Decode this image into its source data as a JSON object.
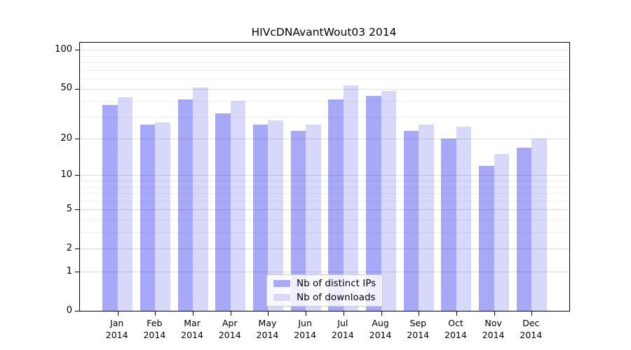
{
  "title": "HIVcDNAvantWout03 2014",
  "chart_data": {
    "type": "bar",
    "title": "HIVcDNAvantWout03 2014",
    "scale": "log1p",
    "categories": [
      "Jan",
      "Feb",
      "Mar",
      "Apr",
      "May",
      "Jun",
      "Jul",
      "Aug",
      "Sep",
      "Oct",
      "Nov",
      "Dec"
    ],
    "year": "2014",
    "series": [
      {
        "name": "Nb of distinct IPs",
        "color": "#a8a8f8",
        "values": [
          37,
          26,
          41,
          32,
          26,
          23,
          41,
          44,
          23,
          20,
          12,
          17
        ]
      },
      {
        "name": "Nb of downloads",
        "color": "#d8d8fa",
        "values": [
          43,
          27,
          51,
          40,
          28,
          26,
          53,
          48,
          26,
          25,
          15,
          20
        ]
      }
    ],
    "yticks": [
      0,
      1,
      2,
      5,
      10,
      20,
      50,
      100
    ],
    "minor_gridlines": [
      3,
      4,
      6,
      7,
      8,
      9,
      30,
      40,
      60,
      70,
      80,
      90
    ],
    "ylim": [
      0,
      114
    ],
    "xlabel": "",
    "ylabel": "",
    "grid": true,
    "legend_position": "lower-center",
    "colors": {
      "spine": "#000000",
      "grid_major": "#dedede",
      "grid_minor": "#f0f0f0",
      "background": "#ffffff"
    }
  }
}
